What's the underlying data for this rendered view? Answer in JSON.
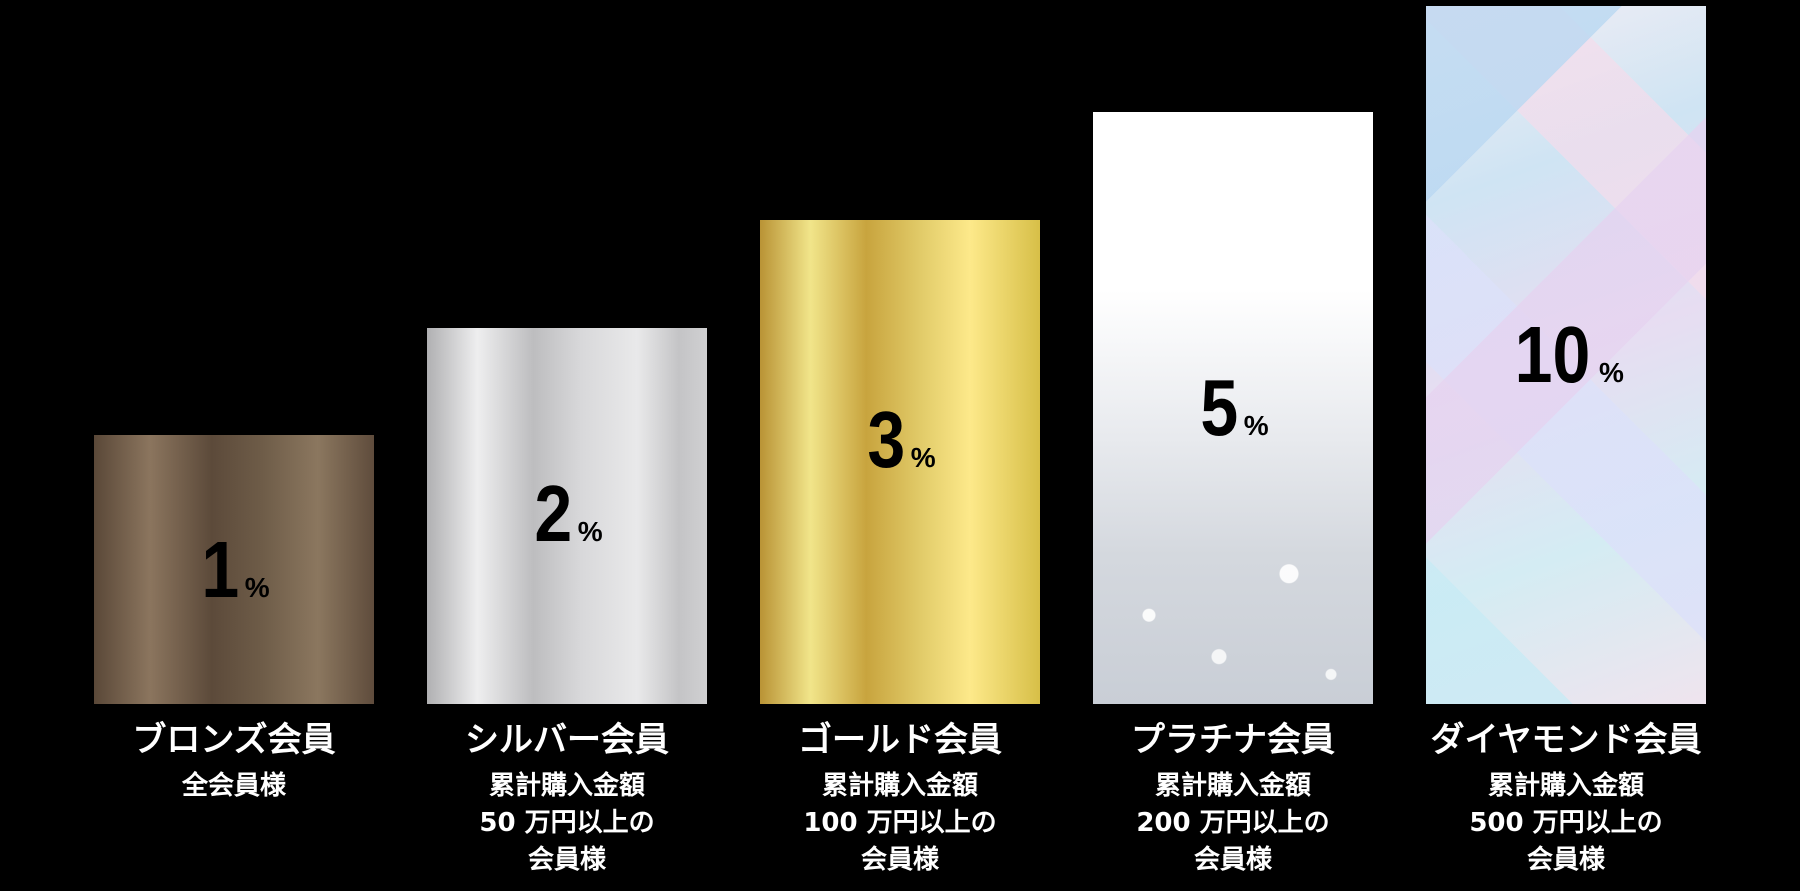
{
  "chart_data": {
    "type": "bar",
    "categories": [
      "ブロンズ会員",
      "シルバー会員",
      "ゴールド会員",
      "プラチナ会員",
      "ダイヤモンド会員"
    ],
    "values": [
      1,
      2,
      3,
      5,
      10
    ],
    "unit": "%",
    "conditions": [
      [
        "全会員様"
      ],
      [
        "累計購入金額",
        "50 万円以上の",
        "会員様"
      ],
      [
        "累計購入金額",
        "100 万円以上の",
        "会員様"
      ],
      [
        "累計購入金額",
        "200 万円以上の",
        "会員様"
      ],
      [
        "累計購入金額",
        "500 万円以上の",
        "会員様"
      ]
    ],
    "bar_styles": [
      "bronze",
      "silver",
      "gold",
      "platinum",
      "diamond"
    ],
    "grid": false,
    "background": "#000000"
  }
}
